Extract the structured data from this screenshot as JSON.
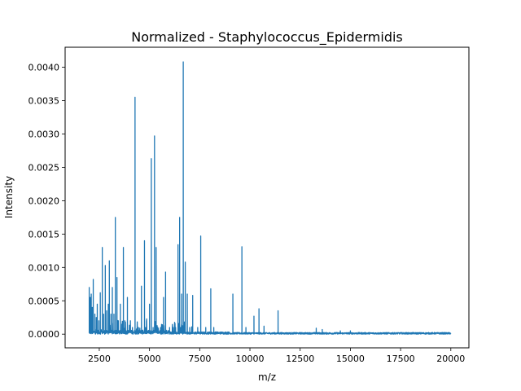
{
  "chart_data": {
    "type": "line",
    "title": "Normalized - Staphylococcus_Epidermidis",
    "xlabel": "m/z",
    "ylabel": "Intensity",
    "xlim": [
      800,
      20900
    ],
    "ylim": [
      -0.000205,
      0.0043
    ],
    "xticks": [
      2500,
      5000,
      7500,
      10000,
      12500,
      15000,
      17500,
      20000
    ],
    "xtick_labels": [
      "2500",
      "5000",
      "7500",
      "10000",
      "12500",
      "15000",
      "17500",
      "20000"
    ],
    "yticks": [
      0,
      0.0005,
      0.001,
      0.0015,
      0.002,
      0.0025,
      0.003,
      0.0035,
      0.004
    ],
    "ytick_labels": [
      "0.0000",
      "0.0005",
      "0.0010",
      "0.0015",
      "0.0020",
      "0.0025",
      "0.0030",
      "0.0035",
      "0.0040"
    ],
    "grid": false,
    "color": "#1f77b4",
    "x_range": [
      2000,
      20000
    ],
    "peaks": [
      [
        2000,
        0.0007
      ],
      [
        2050,
        0.00055
      ],
      [
        2100,
        0.0006
      ],
      [
        2150,
        0.0004
      ],
      [
        2200,
        0.00082
      ],
      [
        2280,
        0.0003
      ],
      [
        2350,
        0.00025
      ],
      [
        2400,
        0.00045
      ],
      [
        2480,
        0.0002
      ],
      [
        2550,
        0.00062
      ],
      [
        2650,
        0.0013
      ],
      [
        2720,
        0.0003
      ],
      [
        2800,
        0.00103
      ],
      [
        2870,
        0.00035
      ],
      [
        2950,
        0.00045
      ],
      [
        3000,
        0.0011
      ],
      [
        3080,
        0.0003
      ],
      [
        3150,
        0.0007
      ],
      [
        3230,
        0.0003
      ],
      [
        3300,
        0.00175
      ],
      [
        3380,
        0.00085
      ],
      [
        3450,
        0.0002
      ],
      [
        3550,
        0.00045
      ],
      [
        3700,
        0.0013
      ],
      [
        3770,
        0.0002
      ],
      [
        3900,
        0.00055
      ],
      [
        4050,
        0.0002
      ],
      [
        4150,
        0.0001
      ],
      [
        4280,
        0.00355
      ],
      [
        4450,
        0.0001
      ],
      [
        4600,
        0.00072
      ],
      [
        4750,
        0.0014
      ],
      [
        4850,
        0.0002
      ],
      [
        5000,
        0.00045
      ],
      [
        5090,
        0.00263
      ],
      [
        5180,
        0.0001
      ],
      [
        5250,
        0.00297
      ],
      [
        5330,
        0.0013
      ],
      [
        5420,
        0.0001
      ],
      [
        5550,
        0.0001
      ],
      [
        5700,
        0.00055
      ],
      [
        5800,
        0.00093
      ],
      [
        6000,
        0.0001
      ],
      [
        6180,
        0.0001
      ],
      [
        6300,
        0.0001
      ],
      [
        6420,
        0.00134
      ],
      [
        6500,
        0.00175
      ],
      [
        6550,
        0.0001
      ],
      [
        6600,
        0.0006
      ],
      [
        6680,
        0.00408
      ],
      [
        6780,
        0.00108
      ],
      [
        6880,
        0.0006
      ],
      [
        7000,
        0.0001
      ],
      [
        7150,
        0.00058
      ],
      [
        7400,
        0.0001
      ],
      [
        7550,
        0.00147
      ],
      [
        7800,
        0.0001
      ],
      [
        8050,
        0.00068
      ],
      [
        8200,
        0.0001
      ],
      [
        9150,
        0.0006
      ],
      [
        9600,
        0.00131
      ],
      [
        9800,
        0.0001
      ],
      [
        10200,
        0.00027
      ],
      [
        10450,
        0.00038
      ],
      [
        10700,
        0.00012
      ],
      [
        11400,
        0.00035
      ],
      [
        13300,
        9e-05
      ],
      [
        13600,
        7e-05
      ],
      [
        14500,
        5e-05
      ],
      [
        15000,
        5e-05
      ]
    ]
  }
}
